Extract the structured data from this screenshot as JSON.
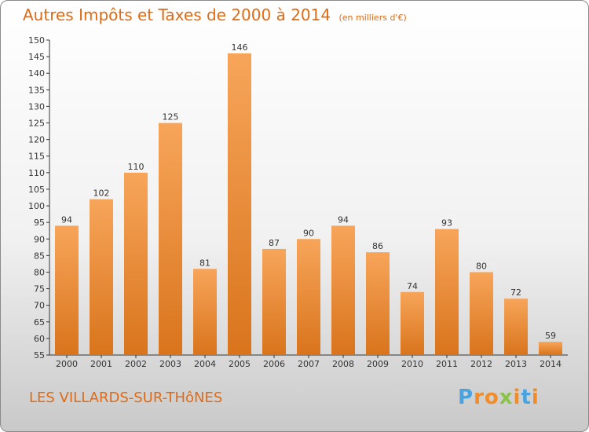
{
  "header": {
    "title": "Autres Impôts et Taxes de 2000 à 2014",
    "subtitle": "(en milliers d'€)"
  },
  "footer": {
    "place": "LES VILLARDS-SUR-THôNES",
    "logo": [
      "P",
      "r",
      "o",
      "x",
      "i",
      "t",
      "i"
    ]
  },
  "colors": {
    "title": "#e06b14",
    "bar_top": "#f7a55a",
    "bar_bottom": "#d9741c",
    "logo": [
      "#4aa3df",
      "#f28c28",
      "#f28c28",
      "#8bc34a",
      "#f28c28",
      "#4aa3df",
      "#f28c28"
    ]
  },
  "chart_data": {
    "type": "bar",
    "title": "Autres Impôts et Taxes de 2000 à 2014",
    "subtitle": "(en milliers d'€)",
    "categories": [
      "2000",
      "2001",
      "2002",
      "2003",
      "2004",
      "2005",
      "2006",
      "2007",
      "2008",
      "2009",
      "2010",
      "2011",
      "2012",
      "2013",
      "2014"
    ],
    "values": [
      94,
      102,
      110,
      125,
      81,
      146,
      87,
      90,
      94,
      86,
      74,
      93,
      80,
      72,
      59
    ],
    "ylim": [
      55,
      150
    ],
    "yticks": [
      55,
      60,
      65,
      70,
      75,
      80,
      85,
      90,
      95,
      100,
      105,
      110,
      115,
      120,
      125,
      130,
      135,
      140,
      145,
      150
    ],
    "grid": false,
    "xlabel": "",
    "ylabel": ""
  }
}
